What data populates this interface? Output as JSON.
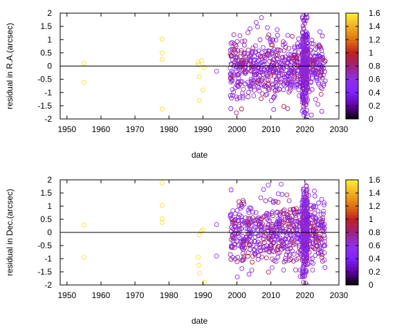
{
  "chart_data": [
    {
      "type": "scatter",
      "xlabel": "date",
      "ylabel": "residual in R.A.(arcsec)",
      "xlim": [
        1948,
        2030
      ],
      "ylim": [
        -2,
        2
      ],
      "x_ticks": [
        1950,
        1960,
        1970,
        1980,
        1990,
        2000,
        2010,
        2020,
        2030
      ],
      "y_ticks": [
        -2,
        -1.5,
        -1,
        -0.5,
        0,
        0.5,
        1,
        1.5,
        2
      ],
      "reference_line": 0,
      "marker": "open-circle",
      "colorbar": {
        "range": [
          0,
          1.6
        ],
        "ticks": [
          0,
          0.2,
          0.4,
          0.6,
          0.8,
          1,
          1.2,
          1.4,
          1.6
        ],
        "palette": [
          "#000000",
          "#6000a0",
          "#8020ff",
          "#9030e8",
          "#a02080",
          "#c02020",
          "#e07010",
          "#f0b020",
          "#ffee30"
        ]
      },
      "highlighted_points": [
        {
          "x": 1955.0,
          "y": 0.1,
          "c": 1.55
        },
        {
          "x": 1955.0,
          "y": -0.62,
          "c": 1.55
        },
        {
          "x": 1978.0,
          "y": 1.02,
          "c": 1.55
        },
        {
          "x": 1978.0,
          "y": 0.5,
          "c": 1.55
        },
        {
          "x": 1978.0,
          "y": 0.25,
          "c": 1.55
        },
        {
          "x": 1978.0,
          "y": -1.62,
          "c": 1.55
        },
        {
          "x": 1988.6,
          "y": 0.15,
          "c": 1.55
        },
        {
          "x": 1988.8,
          "y": 0.05,
          "c": 1.55
        },
        {
          "x": 1989.0,
          "y": -0.4,
          "c": 1.55
        },
        {
          "x": 1989.0,
          "y": -1.3,
          "c": 1.55
        },
        {
          "x": 1989.6,
          "y": 0.2,
          "c": 1.55
        },
        {
          "x": 1990.0,
          "y": -0.9,
          "c": 1.55
        },
        {
          "x": 1990.4,
          "y": -0.05,
          "c": 1.55
        },
        {
          "x": 1994.0,
          "y": -0.2,
          "c": 0.6
        }
      ],
      "clusters": [
        {
          "x_range": [
            1998,
            2026
          ],
          "y_spread": 0.55,
          "count": 650,
          "c_range": [
            0.35,
            0.95
          ]
        },
        {
          "x_range": [
            2019.2,
            2020.8
          ],
          "y_spread": 0.9,
          "count": 260,
          "c_range": [
            0.3,
            0.8
          ]
        }
      ]
    },
    {
      "type": "scatter",
      "xlabel": "date",
      "ylabel": "residual in Dec.(arcsec)",
      "xlim": [
        1948,
        2030
      ],
      "ylim": [
        -2,
        2
      ],
      "x_ticks": [
        1950,
        1960,
        1970,
        1980,
        1990,
        2000,
        2010,
        2020,
        2030
      ],
      "y_ticks": [
        -2,
        -1.5,
        -1,
        -0.5,
        0,
        0.5,
        1,
        1.5,
        2
      ],
      "reference_line": 0,
      "marker": "open-circle",
      "colorbar": {
        "range": [
          0,
          1.6
        ],
        "ticks": [
          0,
          0.2,
          0.4,
          0.6,
          0.8,
          1,
          1.2,
          1.4,
          1.6
        ],
        "palette": [
          "#000000",
          "#6000a0",
          "#8020ff",
          "#9030e8",
          "#a02080",
          "#c02020",
          "#e07010",
          "#f0b020",
          "#ffee30"
        ]
      },
      "highlighted_points": [
        {
          "x": 1955.0,
          "y": 0.28,
          "c": 1.55
        },
        {
          "x": 1955.0,
          "y": -0.95,
          "c": 1.55
        },
        {
          "x": 1978.0,
          "y": 1.88,
          "c": 1.55
        },
        {
          "x": 1978.0,
          "y": 1.03,
          "c": 1.55
        },
        {
          "x": 1978.0,
          "y": 0.52,
          "c": 1.55
        },
        {
          "x": 1978.0,
          "y": 0.38,
          "c": 1.55
        },
        {
          "x": 1988.6,
          "y": -0.95,
          "c": 1.55
        },
        {
          "x": 1988.8,
          "y": -1.25,
          "c": 1.55
        },
        {
          "x": 1989.0,
          "y": -1.55,
          "c": 1.55
        },
        {
          "x": 1989.0,
          "y": -0.1,
          "c": 1.55
        },
        {
          "x": 1989.6,
          "y": 0.05,
          "c": 1.55
        },
        {
          "x": 1990.0,
          "y": 0.1,
          "c": 1.55
        },
        {
          "x": 1990.4,
          "y": -1.9,
          "c": 1.55
        },
        {
          "x": 1994.0,
          "y": 0.3,
          "c": 0.6
        },
        {
          "x": 1994.0,
          "y": -0.9,
          "c": 0.6
        }
      ],
      "clusters": [
        {
          "x_range": [
            1998,
            2026
          ],
          "y_spread": 0.6,
          "count": 650,
          "c_range": [
            0.35,
            0.95
          ]
        },
        {
          "x_range": [
            2019.2,
            2020.8
          ],
          "y_spread": 0.95,
          "count": 260,
          "c_range": [
            0.3,
            0.8
          ]
        }
      ]
    }
  ]
}
